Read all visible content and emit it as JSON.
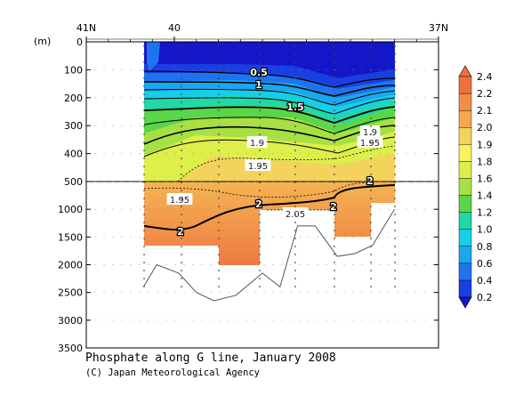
{
  "chart_data": {
    "type": "contour",
    "title": "Phosphate along G line, January 2008",
    "credit": "(C) Japan Meteorological Agency",
    "ylabel": "(m)",
    "lat_ticks": [
      "41N",
      "40",
      "37N"
    ],
    "lat_range": [
      41,
      37
    ],
    "depth_ticks_upper": [
      0,
      100,
      200,
      300,
      400,
      500
    ],
    "depth_ticks_lower": [
      1000,
      1500,
      2000,
      2500,
      3000,
      3500
    ],
    "depth_break": 500,
    "depth_range": [
      0,
      3500
    ],
    "colorbar_levels": [
      0.2,
      0.4,
      0.6,
      0.8,
      1.0,
      1.2,
      1.4,
      1.6,
      1.8,
      1.9,
      2.0,
      2.1,
      2.2,
      2.4
    ],
    "colorbar_colors": [
      "#1417c8",
      "#1a3fe0",
      "#1e74ee",
      "#19a8f0",
      "#16cfe6",
      "#21d8a8",
      "#5ad64a",
      "#a7e043",
      "#dcef4b",
      "#f7f25e",
      "#f4d35c",
      "#f4a74f",
      "#f28d48",
      "#ee7040"
    ],
    "contour_labels": [
      "0.5",
      "1",
      "1.5",
      "1.9",
      "1.95",
      "1.95",
      "1.9",
      "1.95",
      "2",
      "2.05",
      "2",
      "2",
      "2"
    ],
    "stations": [
      {
        "lat": 40.35,
        "bottom": 2400
      },
      {
        "lat": 40.2,
        "bottom": 2000
      },
      {
        "lat": 39.95,
        "bottom": 2150
      },
      {
        "lat": 39.75,
        "bottom": 2500
      },
      {
        "lat": 39.55,
        "bottom": 2650
      },
      {
        "lat": 39.3,
        "bottom": 2550
      },
      {
        "lat": 39.0,
        "bottom": 2150
      },
      {
        "lat": 38.8,
        "bottom": 2400
      },
      {
        "lat": 38.6,
        "bottom": 1300
      },
      {
        "lat": 38.4,
        "bottom": 1300
      },
      {
        "lat": 38.15,
        "bottom": 1850
      },
      {
        "lat": 37.95,
        "bottom": 1800
      },
      {
        "lat": 37.75,
        "bottom": 1650
      },
      {
        "lat": 37.5,
        "bottom": 1000
      }
    ]
  }
}
